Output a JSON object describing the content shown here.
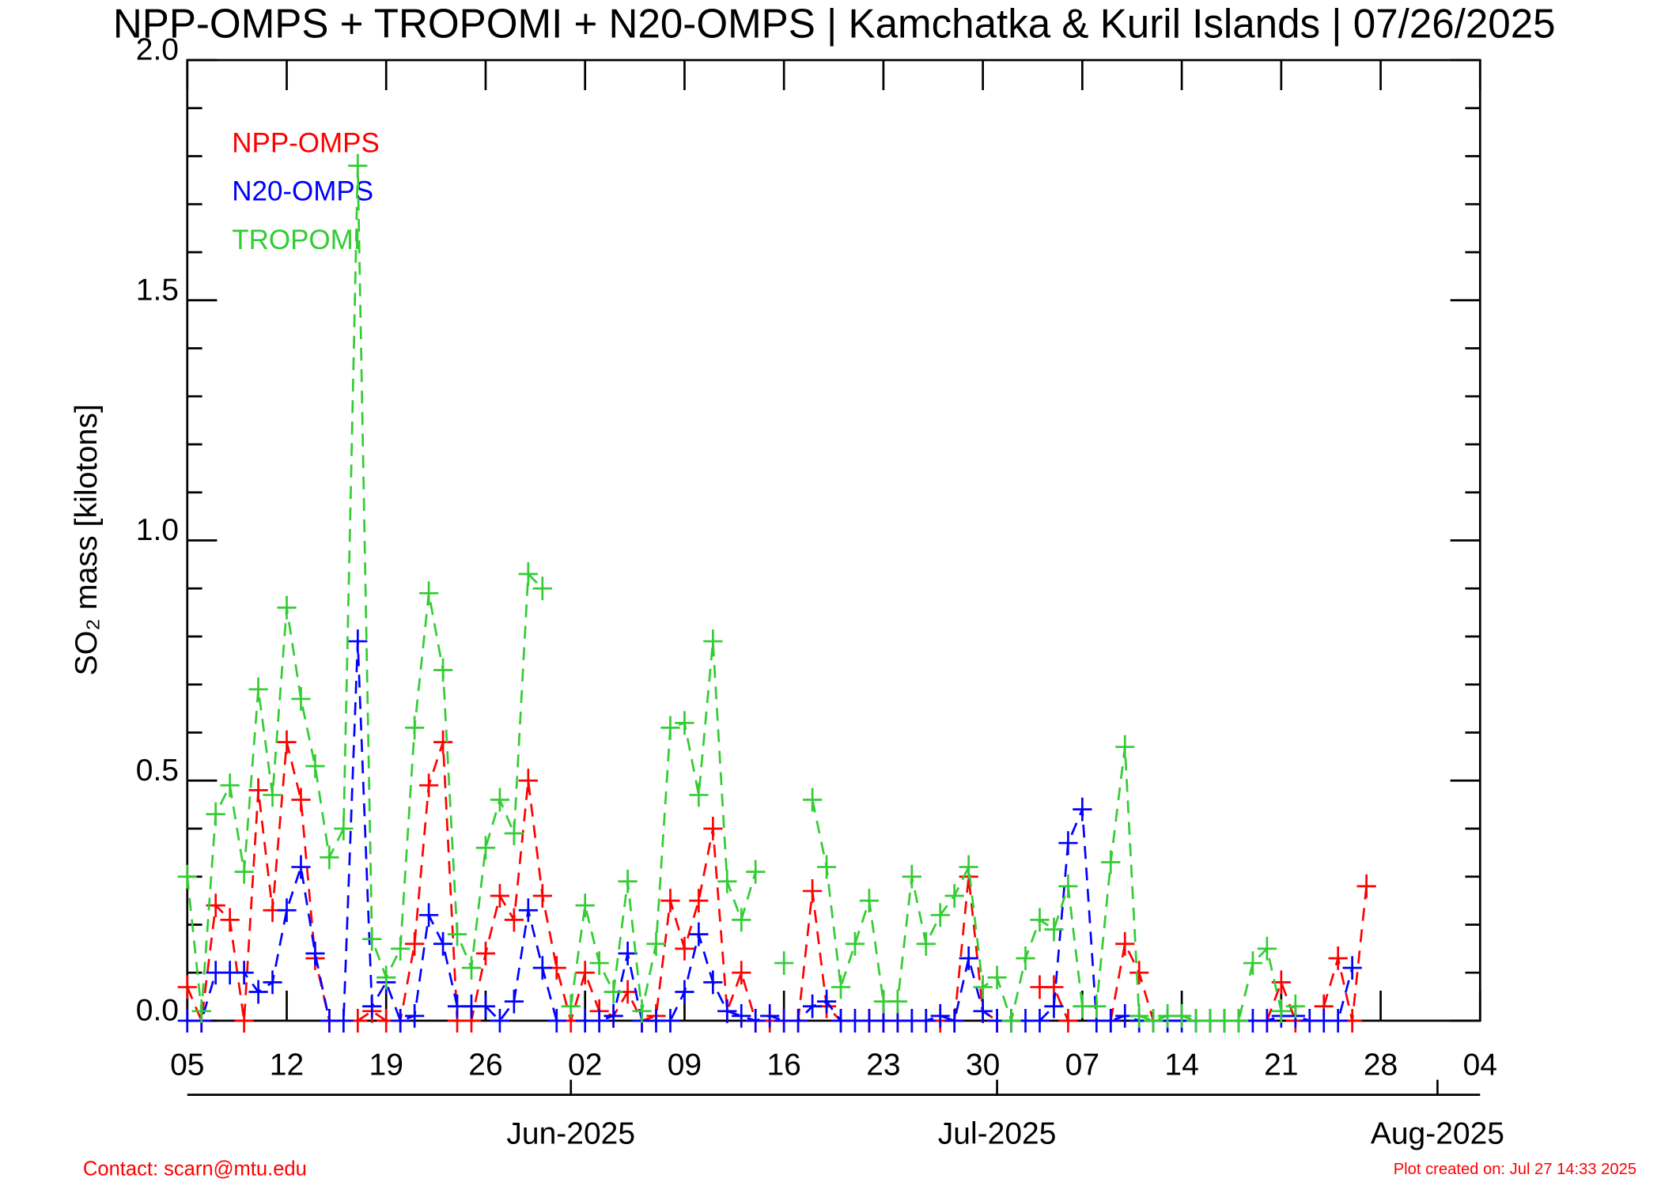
{
  "chart_data": {
    "type": "line",
    "title": "NPP-OMPS + TROPOMI + N20-OMPS | Kamchatka & Kuril Islands | 07/26/2025",
    "y_label": "SO₂ mass [kilotons]",
    "contact": "Contact: scarn@mtu.edu",
    "created": "Plot created on: Jul 27 14:33 2025",
    "x": [
      "2025-05-05",
      "2025-05-06",
      "2025-05-07",
      "2025-05-08",
      "2025-05-09",
      "2025-05-10",
      "2025-05-11",
      "2025-05-12",
      "2025-05-13",
      "2025-05-14",
      "2025-05-15",
      "2025-05-16",
      "2025-05-17",
      "2025-05-18",
      "2025-05-19",
      "2025-05-20",
      "2025-05-21",
      "2025-05-22",
      "2025-05-23",
      "2025-05-24",
      "2025-05-25",
      "2025-05-26",
      "2025-05-27",
      "2025-05-28",
      "2025-05-29",
      "2025-05-30",
      "2025-05-31",
      "2025-06-01",
      "2025-06-02",
      "2025-06-03",
      "2025-06-04",
      "2025-06-05",
      "2025-06-06",
      "2025-06-07",
      "2025-06-08",
      "2025-06-09",
      "2025-06-10",
      "2025-06-11",
      "2025-06-12",
      "2025-06-13",
      "2025-06-14",
      "2025-06-15",
      "2025-06-16",
      "2025-06-17",
      "2025-06-18",
      "2025-06-19",
      "2025-06-20",
      "2025-06-21",
      "2025-06-22",
      "2025-06-23",
      "2025-06-24",
      "2025-06-25",
      "2025-06-26",
      "2025-06-27",
      "2025-06-28",
      "2025-06-29",
      "2025-06-30",
      "2025-07-01",
      "2025-07-02",
      "2025-07-03",
      "2025-07-04",
      "2025-07-05",
      "2025-07-06",
      "2025-07-07",
      "2025-07-08",
      "2025-07-09",
      "2025-07-10",
      "2025-07-11",
      "2025-07-12",
      "2025-07-13",
      "2025-07-14",
      "2025-07-15",
      "2025-07-16",
      "2025-07-17",
      "2025-07-18",
      "2025-07-19",
      "2025-07-20",
      "2025-07-21",
      "2025-07-22",
      "2025-07-23",
      "2025-07-24",
      "2025-07-25",
      "2025-07-26",
      "2025-07-27"
    ],
    "series": [
      {
        "name": "NPP-OMPS",
        "color": "#ff0000",
        "values": [
          0.07,
          0.0,
          0.24,
          0.21,
          0.0,
          0.48,
          0.23,
          0.58,
          0.46,
          0.13,
          0.0,
          null,
          0.0,
          0.02,
          0.0,
          0.0,
          0.16,
          0.49,
          0.58,
          0.0,
          0.0,
          0.14,
          0.26,
          0.21,
          0.5,
          0.26,
          0.11,
          0.0,
          0.1,
          0.02,
          0.01,
          0.06,
          0.0,
          0.01,
          0.25,
          0.15,
          0.25,
          0.4,
          0.02,
          0.1,
          0.0,
          0.0,
          0.0,
          0.0,
          0.27,
          0.03,
          0.0,
          null,
          0.0,
          0.0,
          0.0,
          0.0,
          0.0,
          0.0,
          0.0,
          0.3,
          0.02,
          0.0,
          0.0,
          null,
          0.07,
          0.07,
          0.0,
          null,
          null,
          0.0,
          0.16,
          0.1,
          0.0,
          null,
          null,
          null,
          null,
          null,
          null,
          null,
          0.0,
          0.08,
          0.0,
          null,
          0.03,
          0.13,
          0.0,
          0.28
        ]
      },
      {
        "name": "N20-OMPS",
        "color": "#0000ff",
        "values": [
          0.0,
          0.0,
          0.1,
          0.1,
          0.1,
          0.06,
          0.08,
          0.23,
          0.32,
          0.14,
          0.0,
          0.0,
          0.79,
          0.03,
          0.08,
          0.0,
          0.01,
          0.22,
          0.16,
          0.03,
          0.03,
          0.03,
          0.0,
          0.04,
          0.23,
          0.11,
          0.0,
          null,
          0.0,
          0.0,
          0.01,
          0.14,
          0.0,
          0.0,
          0.0,
          0.06,
          0.18,
          0.08,
          0.02,
          0.01,
          0.0,
          0.01,
          0.0,
          0.0,
          0.03,
          0.04,
          0.0,
          0.0,
          0.0,
          0.0,
          0.0,
          0.0,
          0.0,
          0.01,
          0.0,
          0.13,
          0.02,
          0.0,
          0.0,
          0.0,
          0.0,
          0.03,
          0.37,
          0.44,
          0.0,
          0.0,
          0.01,
          0.0,
          0.0,
          0.0,
          0.0,
          0.0,
          0.0,
          0.0,
          0.0,
          0.0,
          0.0,
          0.01,
          0.01,
          0.0,
          0.0,
          0.0,
          0.11,
          null
        ]
      },
      {
        "name": "TROPOMI",
        "color": "#33cc33",
        "values": [
          0.3,
          0.02,
          0.43,
          0.49,
          0.31,
          0.69,
          0.47,
          0.86,
          0.67,
          0.53,
          0.34,
          0.4,
          1.78,
          0.17,
          0.09,
          0.15,
          0.61,
          0.89,
          0.73,
          0.18,
          0.11,
          0.36,
          0.46,
          0.39,
          0.93,
          0.9,
          null,
          0.03,
          0.24,
          0.12,
          0.06,
          0.29,
          0.02,
          0.16,
          0.61,
          0.62,
          0.47,
          0.79,
          0.29,
          0.21,
          0.31,
          null,
          0.12,
          null,
          0.46,
          0.32,
          0.07,
          0.16,
          0.25,
          0.04,
          0.04,
          0.3,
          0.16,
          0.22,
          0.26,
          0.32,
          0.07,
          0.09,
          0.0,
          0.13,
          0.21,
          0.19,
          0.28,
          0.03,
          0.03,
          0.33,
          0.57,
          0.01,
          0.0,
          0.01,
          0.01,
          0.0,
          0.0,
          0.0,
          0.0,
          0.12,
          0.15,
          0.02,
          0.03,
          null,
          null,
          null,
          null,
          null
        ]
      }
    ],
    "xlim": [
      "2025-05-05",
      "2025-08-04"
    ],
    "xticks": [
      {
        "value": "2025-05-05",
        "label": "05"
      },
      {
        "value": "2025-05-12",
        "label": "12"
      },
      {
        "value": "2025-05-19",
        "label": "19"
      },
      {
        "value": "2025-05-26",
        "label": "26"
      },
      {
        "value": "2025-06-02",
        "label": "02"
      },
      {
        "value": "2025-06-09",
        "label": "09"
      },
      {
        "value": "2025-06-16",
        "label": "16"
      },
      {
        "value": "2025-06-23",
        "label": "23"
      },
      {
        "value": "2025-06-30",
        "label": "30"
      },
      {
        "value": "2025-07-07",
        "label": "07"
      },
      {
        "value": "2025-07-14",
        "label": "14"
      },
      {
        "value": "2025-07-21",
        "label": "21"
      },
      {
        "value": "2025-07-28",
        "label": "28"
      },
      {
        "value": "2025-08-04",
        "label": "04"
      }
    ],
    "month_ticks": [
      {
        "value": "2025-06-01",
        "label": "Jun-2025"
      },
      {
        "value": "2025-07-01",
        "label": "Jul-2025"
      },
      {
        "value": "2025-08-01",
        "label": "Aug-2025"
      }
    ],
    "ylim": [
      0,
      2
    ],
    "yticks": [
      {
        "value": 0,
        "label": "0.0"
      },
      {
        "value": 0.5,
        "label": "0.5"
      },
      {
        "value": 1,
        "label": "1.0"
      },
      {
        "value": 1.5,
        "label": "1.5"
      },
      {
        "value": 2,
        "label": "2.0"
      }
    ],
    "yminorticks": [
      0.1,
      0.2,
      0.3,
      0.4,
      0.6,
      0.7,
      0.8,
      0.9,
      1.1,
      1.2,
      1.3,
      1.4,
      1.6,
      1.7,
      1.8,
      1.9
    ],
    "legend": "upper left"
  }
}
